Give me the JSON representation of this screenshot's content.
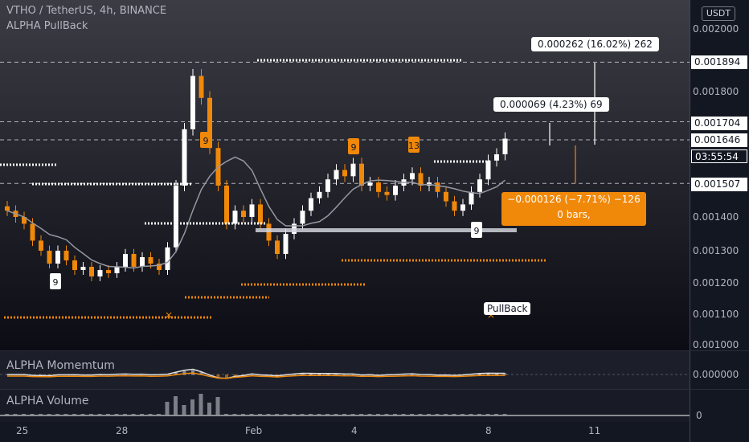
{
  "header": {
    "symbol_line": "VTHO / TetherUS, 4h, BINANCE",
    "indicator": "ALPHA PullBack",
    "currency_button": "USDT"
  },
  "price_axis": {
    "ticks": [
      "0.002000",
      "0.001800",
      "0.001500",
      "0.001400",
      "0.001300",
      "0.001200",
      "0.001100",
      "0.001000"
    ],
    "highlighted": [
      "0.001894",
      "0.001704",
      "0.001646",
      "0.001507"
    ],
    "countdown": "03:55:54"
  },
  "time_axis": [
    "25",
    "28",
    "Feb",
    "4",
    "8",
    "11"
  ],
  "annotations": {
    "measure_big": "0.000262 (16.02%) 262",
    "measure_small": "0.000069 (4.23%) 69",
    "measure_down_line1": "−0.000126 (−7.71%) −126",
    "measure_down_line2": "0 bars,",
    "pullback_label": "PullBack",
    "setup_labels": [
      "9",
      "9",
      "9",
      "13",
      "9"
    ]
  },
  "panes": {
    "momentum_title": "ALPHA Momemtum",
    "momentum_value": "0.000000",
    "volume_title": "ALPHA Volume",
    "volume_value": "0"
  },
  "colors": {
    "background": "#131722",
    "orange": "#f0880a",
    "white": "#ffffff",
    "grey_ma": "#9598a1"
  },
  "chart_data": {
    "type": "candlestick",
    "title": "VTHO / TetherUS, 4h, BINANCE",
    "y_range": [
      0.00098,
      0.00205
    ],
    "x_labels": [
      "25",
      "28",
      "Feb",
      "4",
      "8",
      "11"
    ],
    "levels": {
      "upper_target": 0.001894,
      "mid_target": 0.001704,
      "last_price": 0.001646,
      "base": 0.001507
    },
    "closes_approx": [
      0.00142,
      0.0014,
      0.00138,
      0.00133,
      0.0013,
      0.00126,
      0.0013,
      0.00127,
      0.00124,
      0.00125,
      0.00122,
      0.00124,
      0.00123,
      0.00125,
      0.00129,
      0.00125,
      0.00128,
      0.00126,
      0.00124,
      0.00131,
      0.0015,
      0.00168,
      0.00185,
      0.00178,
      0.00162,
      0.0015,
      0.00138,
      0.00142,
      0.0014,
      0.00144,
      0.00138,
      0.00133,
      0.00129,
      0.00135,
      0.00138,
      0.00142,
      0.00146,
      0.00148,
      0.00152,
      0.00155,
      0.00153,
      0.00157,
      0.0015,
      0.00151,
      0.00148,
      0.00147,
      0.0015,
      0.00152,
      0.00154,
      0.0015,
      0.00151,
      0.00148,
      0.00145,
      0.00142,
      0.00144,
      0.00148,
      0.00152,
      0.00158,
      0.0016,
      0.00165
    ]
  }
}
